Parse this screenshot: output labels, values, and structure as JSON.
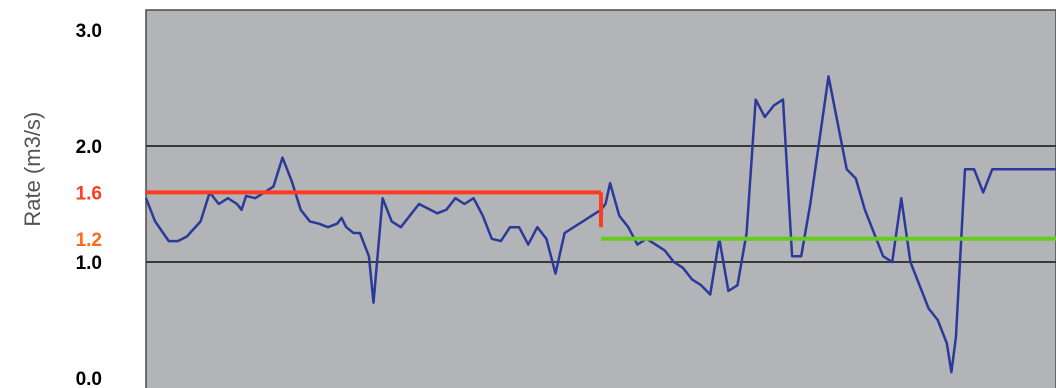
{
  "chart_data": {
    "type": "line",
    "ylabel": "Rate (m3/s)",
    "ylim": [
      0,
      3.0
    ],
    "xlim": [
      0,
      100
    ],
    "grid": "horizontal",
    "background_color": "#b2b4b7",
    "gridline_color": "#3a3a3a",
    "y_ticks": [
      {
        "label": "3.0",
        "value": 3.0,
        "color": "#000000"
      },
      {
        "label": "2.0",
        "value": 2.0,
        "color": "#000000"
      },
      {
        "label": "1.6",
        "value": 1.6,
        "color": "#ff3b1f"
      },
      {
        "label": "1.2",
        "value": 1.2,
        "color": "#ff6a1a"
      },
      {
        "label": "1.0",
        "value": 1.0,
        "color": "#000000"
      },
      {
        "label": "0.0",
        "value": 0.0,
        "color": "#000000"
      }
    ],
    "gridlines": [
      1.0,
      2.0
    ],
    "series": [
      {
        "role": "measured-rate",
        "color": "#2b3a9a",
        "x": [
          0,
          1,
          2.5,
          3.5,
          4.5,
          6,
          7,
          8,
          9,
          10,
          10.5,
          11,
          12,
          13,
          14,
          15,
          16,
          17,
          18,
          19,
          20,
          21,
          21.5,
          22,
          22.8,
          23.5,
          24.5,
          25,
          26,
          27,
          28,
          30,
          32,
          33,
          34,
          35,
          36,
          37,
          38,
          39,
          40,
          41,
          42,
          43,
          44,
          45,
          46,
          47,
          48,
          49,
          50,
          50.5,
          51,
          52,
          53,
          54,
          55,
          56,
          57,
          58,
          59,
          60,
          61,
          62,
          63,
          64,
          65,
          66,
          67,
          68,
          69,
          70,
          71,
          72,
          73,
          74,
          75,
          76,
          77,
          78,
          79,
          80,
          81,
          82,
          83,
          84,
          85,
          86,
          87,
          88,
          88.5,
          89,
          90,
          91,
          92,
          93,
          94,
          95,
          96,
          97,
          98,
          99,
          100
        ],
        "values": [
          1.55,
          1.35,
          1.18,
          1.18,
          1.22,
          1.35,
          1.6,
          1.5,
          1.55,
          1.5,
          1.45,
          1.57,
          1.55,
          1.6,
          1.65,
          1.9,
          1.7,
          1.45,
          1.35,
          1.33,
          1.3,
          1.33,
          1.38,
          1.3,
          1.25,
          1.25,
          1.05,
          0.65,
          1.55,
          1.35,
          1.3,
          1.5,
          1.42,
          1.45,
          1.55,
          1.5,
          1.55,
          1.4,
          1.2,
          1.18,
          1.3,
          1.3,
          1.15,
          1.3,
          1.2,
          0.9,
          1.25,
          1.3,
          1.35,
          1.4,
          1.45,
          1.5,
          1.68,
          1.4,
          1.3,
          1.15,
          1.2,
          1.15,
          1.1,
          1.0,
          0.95,
          0.85,
          0.8,
          0.72,
          1.2,
          0.75,
          0.8,
          1.25,
          2.4,
          2.25,
          2.35,
          2.4,
          1.05,
          1.05,
          1.5,
          2.05,
          2.6,
          2.2,
          1.8,
          1.72,
          1.45,
          1.25,
          1.05,
          1.0,
          1.55,
          1.0,
          0.8,
          0.6,
          0.5,
          0.3,
          0.05,
          0.35,
          1.8,
          1.8,
          1.6,
          1.8,
          1.8,
          1.8,
          1.8,
          1.8,
          1.8,
          1.8,
          1.8
        ]
      },
      {
        "role": "average-before",
        "color": "#ff3b1f",
        "x": [
          0,
          50
        ],
        "values": [
          1.6,
          1.6
        ]
      },
      {
        "role": "step-drop",
        "color": "#ff3b1f",
        "x": [
          50,
          50
        ],
        "values": [
          1.6,
          1.3
        ]
      },
      {
        "role": "average-after",
        "color": "#66cc1f",
        "x": [
          50,
          100
        ],
        "values": [
          1.2,
          1.2
        ]
      }
    ]
  }
}
